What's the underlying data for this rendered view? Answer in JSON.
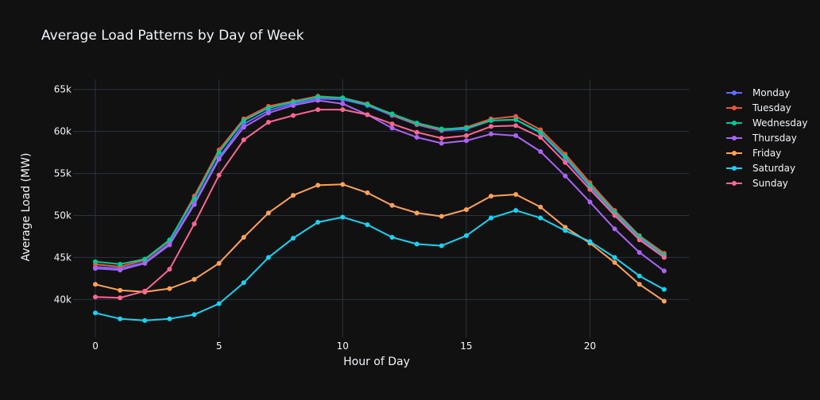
{
  "chart_data": {
    "type": "line",
    "title": "Average Load Patterns by Day of Week",
    "xlabel": "Hour of Day",
    "ylabel": "Average Load (MW)",
    "xlim": [
      -0.9,
      24.0
    ],
    "ylim": [
      35500,
      66200
    ],
    "xticks": [
      0,
      5,
      10,
      15,
      20
    ],
    "yticks": [
      40000,
      45000,
      50000,
      55000,
      60000,
      65000
    ],
    "ytick_labels": [
      "40k",
      "45k",
      "50k",
      "55k",
      "60k",
      "65k"
    ],
    "grid": true,
    "legend_position": "top-right",
    "background": "#111111",
    "grid_color": "#283442",
    "x": [
      0,
      1,
      2,
      3,
      4,
      5,
      6,
      7,
      8,
      9,
      10,
      11,
      12,
      13,
      14,
      15,
      16,
      17,
      18,
      19,
      20,
      21,
      22,
      23
    ],
    "series": [
      {
        "name": "Monday",
        "color": "#636efa",
        "values": [
          43900,
          43700,
          44400,
          46700,
          51500,
          56900,
          60900,
          62500,
          63300,
          63900,
          63800,
          63100,
          61900,
          60800,
          60100,
          60300,
          61300,
          61400,
          59800,
          56800,
          53400,
          50200,
          47300,
          45100
        ]
      },
      {
        "name": "Tuesday",
        "color": "#ef553b",
        "values": [
          44200,
          43900,
          44700,
          47000,
          52300,
          57800,
          61500,
          63000,
          63600,
          64200,
          64000,
          63300,
          62000,
          60900,
          60200,
          60500,
          61500,
          61800,
          60200,
          57300,
          53900,
          50600,
          47600,
          45500
        ]
      },
      {
        "name": "Wednesday",
        "color": "#00cc96",
        "values": [
          44500,
          44200,
          44800,
          47100,
          52000,
          57500,
          61300,
          62800,
          63500,
          64100,
          64000,
          63200,
          62100,
          61000,
          60300,
          60400,
          61300,
          61400,
          59900,
          57000,
          53600,
          50400,
          47500,
          45300
        ]
      },
      {
        "name": "Thursday",
        "color": "#ab63fa",
        "values": [
          43700,
          43500,
          44300,
          46500,
          51300,
          56700,
          60500,
          62200,
          63100,
          63700,
          63300,
          62000,
          60400,
          59300,
          58600,
          58900,
          59700,
          59500,
          57600,
          54700,
          51600,
          48400,
          45600,
          43400
        ]
      },
      {
        "name": "Friday",
        "color": "#ffa15a",
        "values": [
          41800,
          41100,
          40900,
          41300,
          42400,
          44300,
          47400,
          50300,
          52400,
          53600,
          53700,
          52700,
          51200,
          50300,
          49900,
          50700,
          52300,
          52500,
          51000,
          48600,
          46700,
          44400,
          41800,
          39800
        ]
      },
      {
        "name": "Saturday",
        "color": "#19d3f3",
        "values": [
          38400,
          37700,
          37500,
          37700,
          38200,
          39500,
          42000,
          45000,
          47300,
          49200,
          49800,
          48900,
          47400,
          46600,
          46400,
          47600,
          49700,
          50600,
          49700,
          48200,
          46900,
          45000,
          42800,
          41200
        ]
      },
      {
        "name": "Sunday",
        "color": "#ff6692",
        "values": [
          40300,
          40200,
          41000,
          43600,
          49000,
          54800,
          59000,
          61100,
          61900,
          62600,
          62600,
          62000,
          60900,
          59900,
          59200,
          59500,
          60600,
          60700,
          59300,
          56300,
          53100,
          50000,
          47100,
          45000
        ]
      }
    ]
  }
}
